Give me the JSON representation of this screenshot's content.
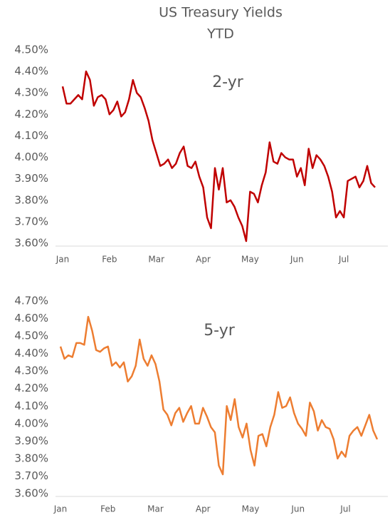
{
  "title": "US Treasury Yields",
  "subtitle": "YTD",
  "chart_data": [
    {
      "type": "line",
      "annotation": "2-yr",
      "categories": [
        "Jan",
        null,
        null,
        null,
        null,
        null,
        null,
        null,
        null,
        null,
        null,
        null,
        "Feb",
        null,
        null,
        null,
        null,
        null,
        null,
        null,
        null,
        null,
        null,
        null,
        "Mar",
        null,
        null,
        null,
        null,
        null,
        null,
        null,
        null,
        null,
        null,
        null,
        "Apr",
        null,
        null,
        null,
        null,
        null,
        null,
        null,
        null,
        null,
        null,
        null,
        "May",
        null,
        null,
        null,
        null,
        null,
        null,
        null,
        null,
        null,
        null,
        null,
        "Jun",
        null,
        null,
        null,
        null,
        null,
        null,
        null,
        null,
        null,
        null,
        null,
        "Jul",
        null,
        null,
        null,
        null,
        null,
        null,
        null,
        null
      ],
      "series": [
        {
          "name": "2-yr",
          "color": "#c00000",
          "values": [
            4.33,
            4.25,
            4.25,
            4.27,
            4.29,
            4.27,
            4.4,
            4.36,
            4.24,
            4.28,
            4.29,
            4.27,
            4.2,
            4.22,
            4.26,
            4.19,
            4.21,
            4.27,
            4.36,
            4.3,
            4.28,
            4.23,
            4.17,
            4.08,
            4.02,
            3.96,
            3.97,
            3.99,
            3.95,
            3.97,
            4.02,
            4.05,
            3.96,
            3.95,
            3.98,
            3.91,
            3.86,
            3.72,
            3.67,
            3.95,
            3.85,
            3.95,
            3.79,
            3.8,
            3.77,
            3.72,
            3.68,
            3.61,
            3.84,
            3.83,
            3.79,
            3.87,
            3.93,
            4.07,
            3.98,
            3.97,
            4.02,
            4.0,
            3.99,
            3.99,
            3.91,
            3.95,
            3.87,
            4.04,
            3.95,
            4.01,
            3.99,
            3.96,
            3.91,
            3.84,
            3.72,
            3.75,
            3.72,
            3.89,
            3.9,
            3.91,
            3.86,
            3.89,
            3.96,
            3.88,
            3.86
          ]
        }
      ],
      "ylim": [
        3.6,
        4.5
      ],
      "yticks": [
        {
          "value": 3.6,
          "label": "3.60%"
        },
        {
          "value": 3.7,
          "label": "3.70%"
        },
        {
          "value": 3.8,
          "label": "3.80%"
        },
        {
          "value": 3.9,
          "label": "3.90%"
        },
        {
          "value": 4.0,
          "label": "4.00%"
        },
        {
          "value": 4.1,
          "label": "4.10%"
        },
        {
          "value": 4.2,
          "label": "4.20%"
        },
        {
          "value": 4.3,
          "label": "4.30%"
        },
        {
          "value": 4.4,
          "label": "4.40%"
        },
        {
          "value": 4.5,
          "label": "4.50%"
        }
      ],
      "grid": false
    },
    {
      "type": "line",
      "annotation": "5-yr",
      "categories": [
        "Jan",
        null,
        null,
        null,
        null,
        null,
        null,
        null,
        null,
        null,
        null,
        null,
        "Feb",
        null,
        null,
        null,
        null,
        null,
        null,
        null,
        null,
        null,
        null,
        null,
        "Mar",
        null,
        null,
        null,
        null,
        null,
        null,
        null,
        null,
        null,
        null,
        null,
        "Apr",
        null,
        null,
        null,
        null,
        null,
        null,
        null,
        null,
        null,
        null,
        null,
        "May",
        null,
        null,
        null,
        null,
        null,
        null,
        null,
        null,
        null,
        null,
        null,
        "Jun",
        null,
        null,
        null,
        null,
        null,
        null,
        null,
        null,
        null,
        null,
        null,
        "Jul",
        null,
        null,
        null,
        null,
        null,
        null,
        null,
        null
      ],
      "series": [
        {
          "name": "5-yr",
          "color": "#ed7d31",
          "values": [
            4.44,
            4.37,
            4.39,
            4.38,
            4.46,
            4.46,
            4.45,
            4.61,
            4.53,
            4.42,
            4.41,
            4.43,
            4.44,
            4.33,
            4.35,
            4.32,
            4.35,
            4.24,
            4.27,
            4.33,
            4.48,
            4.37,
            4.33,
            4.39,
            4.34,
            4.24,
            4.08,
            4.05,
            3.99,
            4.06,
            4.09,
            4.01,
            4.06,
            4.1,
            4.0,
            4.0,
            4.09,
            4.04,
            3.98,
            3.95,
            3.76,
            3.71,
            4.1,
            4.02,
            4.14,
            3.98,
            3.92,
            4.0,
            3.85,
            3.76,
            3.93,
            3.94,
            3.87,
            3.98,
            4.05,
            4.18,
            4.09,
            4.1,
            4.15,
            4.06,
            4.0,
            3.97,
            3.93,
            4.12,
            4.07,
            3.96,
            4.02,
            3.98,
            3.97,
            3.91,
            3.8,
            3.84,
            3.81,
            3.93,
            3.96,
            3.98,
            3.93,
            3.99,
            4.05,
            3.96,
            3.91
          ]
        }
      ],
      "ylim": [
        3.6,
        4.7
      ],
      "yticks": [
        {
          "value": 3.6,
          "label": "3.60%"
        },
        {
          "value": 3.7,
          "label": "3.70%"
        },
        {
          "value": 3.8,
          "label": "3.80%"
        },
        {
          "value": 3.9,
          "label": "3.90%"
        },
        {
          "value": 4.0,
          "label": "4.00%"
        },
        {
          "value": 4.1,
          "label": "4.10%"
        },
        {
          "value": 4.2,
          "label": "4.20%"
        },
        {
          "value": 4.3,
          "label": "4.30%"
        },
        {
          "value": 4.4,
          "label": "4.40%"
        },
        {
          "value": 4.5,
          "label": "4.50%"
        },
        {
          "value": 4.6,
          "label": "4.60%"
        },
        {
          "value": 4.7,
          "label": "4.70%"
        }
      ],
      "grid": false
    }
  ]
}
